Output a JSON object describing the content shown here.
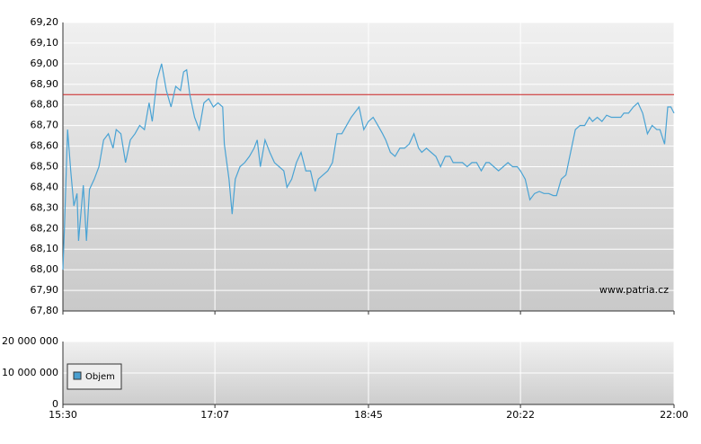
{
  "chart_data": [
    {
      "type": "line",
      "x": [
        "15:30",
        "15:31",
        "15:33",
        "15:35",
        "15:37",
        "15:39",
        "15:40",
        "15:43",
        "15:45",
        "15:47",
        "15:50",
        "15:53",
        "15:56",
        "15:59",
        "16:02",
        "16:04",
        "16:07",
        "16:10",
        "16:13",
        "16:16",
        "16:19",
        "16:22",
        "16:25",
        "16:27",
        "16:30",
        "16:33",
        "16:36",
        "16:39",
        "16:42",
        "16:45",
        "16:47",
        "16:49",
        "16:51",
        "16:54",
        "16:57",
        "17:00",
        "17:03",
        "17:06",
        "17:09",
        "17:12",
        "17:13",
        "17:16",
        "17:18",
        "17:20",
        "17:23",
        "17:26",
        "17:29",
        "17:32",
        "17:34",
        "17:36",
        "17:39",
        "17:42",
        "17:45",
        "17:48",
        "17:51",
        "17:53",
        "17:56",
        "17:59",
        "18:02",
        "18:05",
        "18:08",
        "18:11",
        "18:13",
        "18:16",
        "18:19",
        "18:22",
        "18:25",
        "18:28",
        "18:31",
        "18:34",
        "18:36",
        "18:39",
        "18:42",
        "18:45",
        "18:48",
        "18:51",
        "18:54",
        "18:56",
        "18:59",
        "19:02",
        "19:05",
        "19:08",
        "19:11",
        "19:14",
        "19:17",
        "19:19",
        "19:22",
        "19:25",
        "19:28",
        "19:31",
        "19:34",
        "19:37",
        "19:39",
        "19:42",
        "19:45",
        "19:48",
        "19:51",
        "19:54",
        "19:57",
        "20:00",
        "20:02",
        "20:05",
        "20:08",
        "20:11",
        "20:14",
        "20:17",
        "20:20",
        "20:22",
        "20:25",
        "20:28",
        "20:31",
        "20:34",
        "20:37",
        "20:40",
        "20:43",
        "20:45",
        "20:48",
        "20:51",
        "20:54",
        "20:57",
        "21:00",
        "21:03",
        "21:06",
        "21:08",
        "21:11",
        "21:14",
        "21:17",
        "21:20",
        "21:23",
        "21:26",
        "21:28",
        "21:31",
        "21:34",
        "21:37",
        "21:40",
        "21:43",
        "21:46",
        "21:49",
        "21:51",
        "21:54",
        "21:56",
        "21:58",
        "22:00"
      ],
      "values": [
        68.0,
        68.2,
        68.68,
        68.48,
        68.31,
        68.37,
        68.14,
        68.41,
        68.14,
        68.39,
        68.44,
        68.5,
        68.63,
        68.66,
        68.59,
        68.68,
        68.66,
        68.52,
        68.63,
        68.66,
        68.7,
        68.68,
        68.81,
        68.72,
        68.92,
        69.0,
        68.87,
        68.79,
        68.89,
        68.87,
        68.96,
        68.97,
        68.85,
        68.74,
        68.68,
        68.81,
        68.83,
        68.79,
        68.81,
        68.79,
        68.61,
        68.44,
        68.27,
        68.44,
        68.5,
        68.52,
        68.55,
        68.59,
        68.63,
        68.5,
        68.63,
        68.57,
        68.52,
        68.5,
        68.48,
        68.4,
        68.44,
        68.52,
        68.57,
        68.48,
        68.48,
        68.38,
        68.44,
        68.46,
        68.48,
        68.52,
        68.66,
        68.66,
        68.7,
        68.74,
        68.76,
        68.79,
        68.68,
        68.72,
        68.74,
        68.7,
        68.66,
        68.63,
        68.57,
        68.55,
        68.59,
        68.59,
        68.61,
        68.66,
        68.59,
        68.57,
        68.59,
        68.57,
        68.55,
        68.5,
        68.55,
        68.55,
        68.52,
        68.52,
        68.52,
        68.5,
        68.52,
        68.52,
        68.48,
        68.52,
        68.52,
        68.5,
        68.48,
        68.5,
        68.52,
        68.5,
        68.5,
        68.48,
        68.44,
        68.34,
        68.37,
        68.38,
        68.37,
        68.37,
        68.36,
        68.36,
        68.44,
        68.46,
        68.57,
        68.68,
        68.7,
        68.7,
        68.74,
        68.72,
        68.74,
        68.72,
        68.75,
        68.74,
        68.74,
        68.74,
        68.76,
        68.76,
        68.79,
        68.81,
        68.76,
        68.66,
        68.7,
        68.68,
        68.68,
        68.61,
        68.79,
        68.79,
        68.76
      ],
      "color": "#4aa3d4",
      "xlim": [
        "15:30",
        "22:00"
      ],
      "xticks": [
        "15:30",
        "17:07",
        "18:45",
        "20:22",
        "22:00"
      ],
      "ylim": [
        67.8,
        69.2
      ],
      "yticks": [
        {
          "value": 67.8,
          "label": "67,80"
        },
        {
          "value": 67.9,
          "label": "67,90"
        },
        {
          "value": 68.0,
          "label": "68,00"
        },
        {
          "value": 68.1,
          "label": "68,10"
        },
        {
          "value": 68.2,
          "label": "68,20"
        },
        {
          "value": 68.3,
          "label": "68,30"
        },
        {
          "value": 68.4,
          "label": "68,40"
        },
        {
          "value": 68.5,
          "label": "68,50"
        },
        {
          "value": 68.6,
          "label": "68,60"
        },
        {
          "value": 68.7,
          "label": "68,70"
        },
        {
          "value": 68.8,
          "label": "68,80"
        },
        {
          "value": 68.9,
          "label": "68,90"
        },
        {
          "value": 69.0,
          "label": "69,00"
        },
        {
          "value": 69.1,
          "label": "69,10"
        },
        {
          "value": 69.2,
          "label": "69,20"
        }
      ],
      "reference_line": {
        "value": 68.85,
        "color": "#cc2222"
      },
      "annotation": "www.patria.cz",
      "grid": true
    },
    {
      "type": "bar",
      "series": [
        {
          "name": "Objem",
          "color": "#4a9fd0"
        }
      ],
      "ylim": [
        0,
        20000000
      ],
      "yticks": [
        0,
        {
          "value": 10000000,
          "label": "10 000 000"
        },
        {
          "value": 20000000,
          "label": "20 000 000"
        }
      ],
      "legend": "bottom-left",
      "grid": true
    }
  ]
}
